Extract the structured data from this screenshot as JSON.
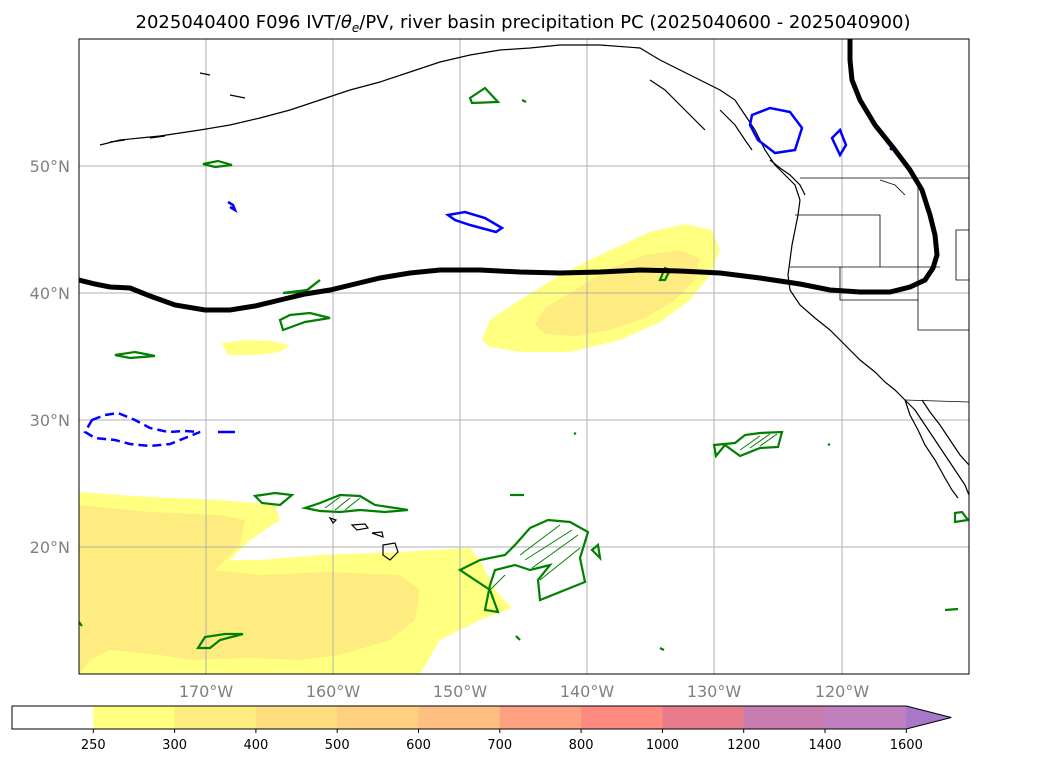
{
  "title_prefix": "2025040400 F096 IVT/",
  "title_theta": "θ",
  "title_sub": "e",
  "title_suffix": "/PV, river basin precipitation PC (2025040600 - 2025040900)",
  "map": {
    "lon_min": -180,
    "lon_max": -110,
    "lat_min": 10,
    "lat_max": 60,
    "lat_labels": [
      "50°N",
      "40°N",
      "30°N",
      "20°N"
    ],
    "lon_labels": [
      "170°W",
      "160°W",
      "150°W",
      "140°W",
      "130°W",
      "120°W"
    ]
  },
  "colorbar": {
    "levels": [
      "250",
      "300",
      "400",
      "500",
      "600",
      "700",
      "800",
      "1000",
      "1200",
      "1400",
      "1600"
    ],
    "colors": [
      "#ffffff",
      "#ffff80",
      "#ffec80",
      "#ffde80",
      "#ffd080",
      "#ffbf80",
      "#ffa080",
      "#ff8a80",
      "#e87c8c",
      "#c87cb0",
      "#c080c0",
      "#a878c8"
    ],
    "extend": "max"
  },
  "colors": {
    "ivt_250": "#ffff80",
    "ivt_300": "#ffec80",
    "precip_contour": "#008000",
    "theta_e_contour": "#0000ff",
    "pv_contour": "#000000"
  }
}
